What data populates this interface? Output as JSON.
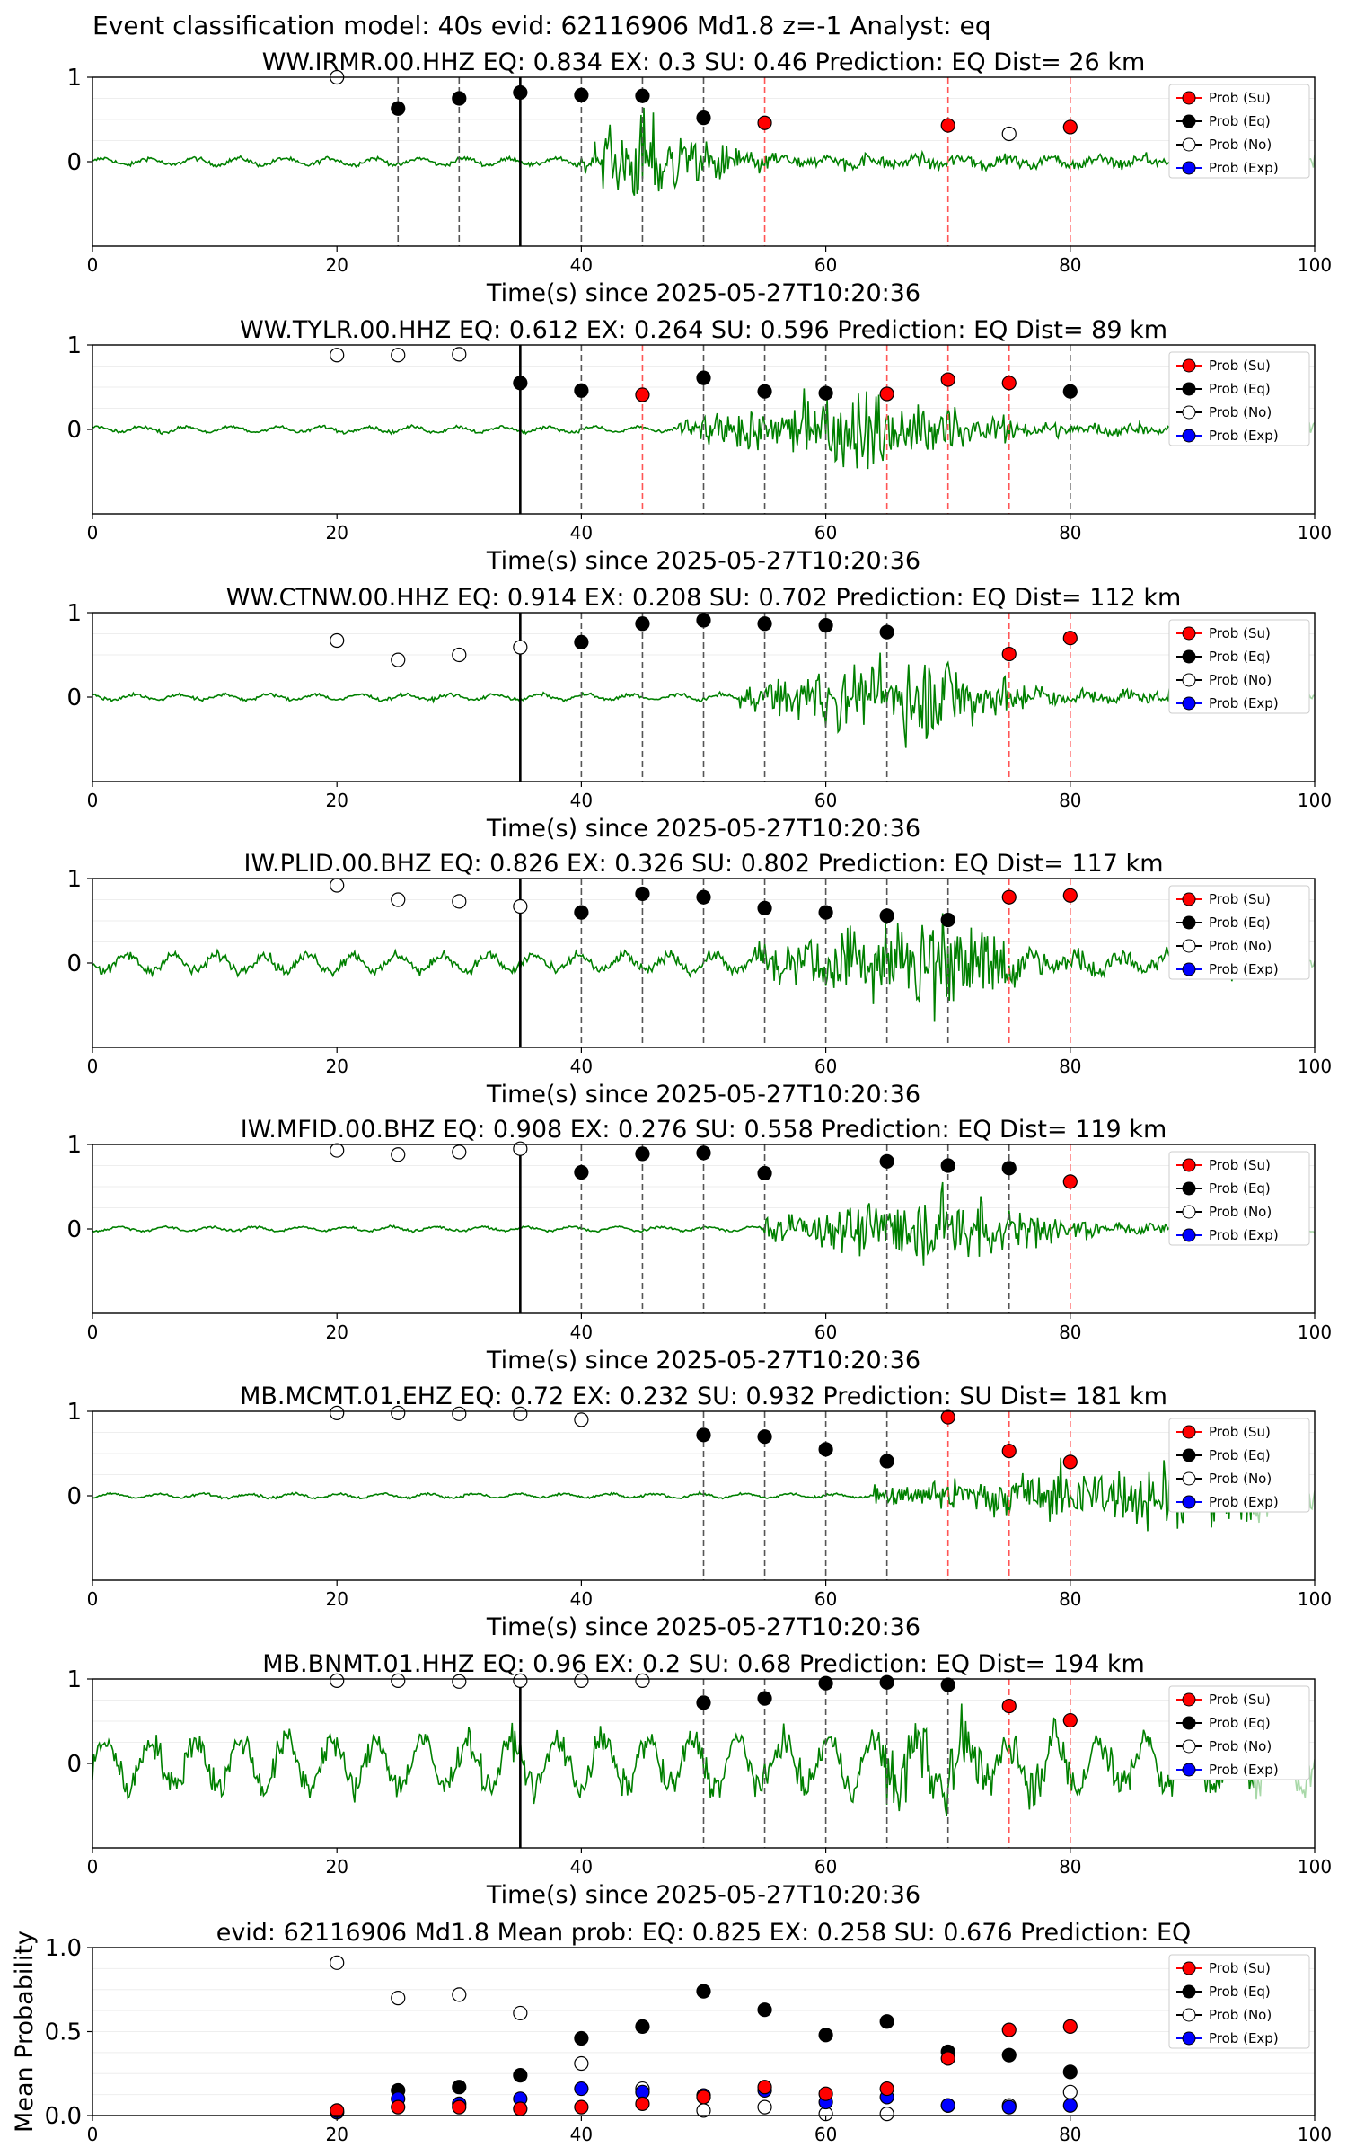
{
  "figure_title": "Event classification model: 40s evid: 62116906 Md1.8 z=-1 Analyst: eq",
  "legend_labels": [
    "Prob (Su)",
    "Prob (Eq)",
    "Prob (No)",
    "Prob (Exp)"
  ],
  "colors": {
    "su": "#ff0000",
    "eq": "#000000",
    "no": "#ffffff",
    "exp": "#0000ff",
    "waveform": "#008000",
    "waveform_future": "#a8d8a8",
    "pick_dashed": "#555555",
    "su_dashed": "#ff5555"
  },
  "chart_data": [
    {
      "type": "line",
      "title": "WW.IRMR.00.HHZ   EQ: 0.834  EX: 0.3  SU: 0.46   Prediction: EQ    Dist= 26 km",
      "xlabel": "Time(s) since 2025-05-27T10:20:36",
      "xlim": [
        0,
        100
      ],
      "ylim": [
        -1,
        1
      ],
      "xticks": [
        "0",
        "20",
        "40",
        "60",
        "80",
        "100"
      ],
      "yticks": [
        "1",
        "0"
      ],
      "legend": "top-right",
      "onset_time": 40,
      "peak_time": 45,
      "amp_noise": 0.05,
      "amp_signal": 0.9,
      "decay": 6,
      "ref_line": 35,
      "dashed_lines": [
        {
          "x": 25,
          "c": "k"
        },
        {
          "x": 30,
          "c": "k"
        },
        {
          "x": 40,
          "c": "k"
        },
        {
          "x": 45,
          "c": "k"
        },
        {
          "x": 50,
          "c": "k"
        },
        {
          "x": 55,
          "c": "r"
        },
        {
          "x": 70,
          "c": "r"
        },
        {
          "x": 80,
          "c": "r"
        }
      ],
      "points": [
        {
          "x": 20,
          "y": 1.0,
          "k": "no"
        },
        {
          "x": 25,
          "y": 0.63,
          "k": "eq"
        },
        {
          "x": 30,
          "y": 0.75,
          "k": "eq"
        },
        {
          "x": 35,
          "y": 0.82,
          "k": "eq"
        },
        {
          "x": 40,
          "y": 0.79,
          "k": "eq"
        },
        {
          "x": 45,
          "y": 0.78,
          "k": "eq"
        },
        {
          "x": 50,
          "y": 0.52,
          "k": "eq"
        },
        {
          "x": 55,
          "y": 0.46,
          "k": "su"
        },
        {
          "x": 70,
          "y": 0.43,
          "k": "su"
        },
        {
          "x": 75,
          "y": 0.33,
          "k": "no"
        },
        {
          "x": 80,
          "y": 0.41,
          "k": "su"
        }
      ]
    },
    {
      "type": "line",
      "title": "WW.TYLR.00.HHZ   EQ: 0.612  EX: 0.264  SU: 0.596   Prediction: EQ    Dist= 89 km",
      "xlabel": "Time(s) since 2025-05-27T10:20:36",
      "xlim": [
        0,
        100
      ],
      "ylim": [
        -1,
        1
      ],
      "xticks": [
        "0",
        "20",
        "40",
        "60",
        "80",
        "100"
      ],
      "yticks": [
        "1",
        "0"
      ],
      "legend": "top-right",
      "onset_time": 48,
      "peak_time": 65,
      "amp_noise": 0.04,
      "amp_signal": 0.8,
      "decay": 8,
      "ref_line": 35,
      "dashed_lines": [
        {
          "x": 40,
          "c": "k"
        },
        {
          "x": 45,
          "c": "r"
        },
        {
          "x": 50,
          "c": "k"
        },
        {
          "x": 55,
          "c": "k"
        },
        {
          "x": 60,
          "c": "k"
        },
        {
          "x": 65,
          "c": "r"
        },
        {
          "x": 70,
          "c": "r"
        },
        {
          "x": 75,
          "c": "r"
        },
        {
          "x": 80,
          "c": "k"
        }
      ],
      "points": [
        {
          "x": 20,
          "y": 0.88,
          "k": "no"
        },
        {
          "x": 25,
          "y": 0.88,
          "k": "no"
        },
        {
          "x": 30,
          "y": 0.89,
          "k": "no"
        },
        {
          "x": 35,
          "y": 0.55,
          "k": "eq"
        },
        {
          "x": 40,
          "y": 0.46,
          "k": "eq"
        },
        {
          "x": 45,
          "y": 0.41,
          "k": "su"
        },
        {
          "x": 50,
          "y": 0.61,
          "k": "eq"
        },
        {
          "x": 55,
          "y": 0.45,
          "k": "eq"
        },
        {
          "x": 60,
          "y": 0.43,
          "k": "eq"
        },
        {
          "x": 65,
          "y": 0.42,
          "k": "su"
        },
        {
          "x": 70,
          "y": 0.59,
          "k": "su"
        },
        {
          "x": 75,
          "y": 0.55,
          "k": "su"
        },
        {
          "x": 80,
          "y": 0.45,
          "k": "eq"
        }
      ]
    },
    {
      "type": "line",
      "title": "WW.CTNW.00.HHZ   EQ: 0.914  EX: 0.208  SU: 0.702   Prediction: EQ    Dist= 112 km",
      "xlabel": "Time(s) since 2025-05-27T10:20:36",
      "xlim": [
        0,
        100
      ],
      "ylim": [
        -1,
        1
      ],
      "xticks": [
        "0",
        "20",
        "40",
        "60",
        "80",
        "100"
      ],
      "yticks": [
        "1",
        "0"
      ],
      "legend": "top-right",
      "onset_time": 53,
      "peak_time": 69,
      "amp_noise": 0.04,
      "amp_signal": 0.85,
      "decay": 6,
      "ref_line": 35,
      "dashed_lines": [
        {
          "x": 40,
          "c": "k"
        },
        {
          "x": 45,
          "c": "k"
        },
        {
          "x": 50,
          "c": "k"
        },
        {
          "x": 55,
          "c": "k"
        },
        {
          "x": 60,
          "c": "k"
        },
        {
          "x": 65,
          "c": "k"
        },
        {
          "x": 75,
          "c": "r"
        },
        {
          "x": 80,
          "c": "r"
        }
      ],
      "points": [
        {
          "x": 20,
          "y": 0.67,
          "k": "no"
        },
        {
          "x": 25,
          "y": 0.44,
          "k": "no"
        },
        {
          "x": 30,
          "y": 0.5,
          "k": "no"
        },
        {
          "x": 35,
          "y": 0.59,
          "k": "no"
        },
        {
          "x": 40,
          "y": 0.65,
          "k": "eq"
        },
        {
          "x": 45,
          "y": 0.87,
          "k": "eq"
        },
        {
          "x": 50,
          "y": 0.91,
          "k": "eq"
        },
        {
          "x": 55,
          "y": 0.87,
          "k": "eq"
        },
        {
          "x": 60,
          "y": 0.85,
          "k": "eq"
        },
        {
          "x": 65,
          "y": 0.77,
          "k": "eq"
        },
        {
          "x": 75,
          "y": 0.51,
          "k": "su"
        },
        {
          "x": 80,
          "y": 0.7,
          "k": "su"
        }
      ]
    },
    {
      "type": "line",
      "title": "IW.PLID.00.BHZ   EQ: 0.826  EX: 0.326  SU: 0.802   Prediction: EQ    Dist= 117 km",
      "xlabel": "Time(s) since 2025-05-27T10:20:36",
      "xlim": [
        0,
        100
      ],
      "ylim": [
        -1,
        1
      ],
      "xticks": [
        "0",
        "20",
        "40",
        "60",
        "80",
        "100"
      ],
      "yticks": [
        "1",
        "0"
      ],
      "legend": "top-right",
      "onset_time": 54,
      "peak_time": 70,
      "amp_noise": 0.12,
      "amp_signal": 0.9,
      "decay": 7,
      "ref_line": 35,
      "dashed_lines": [
        {
          "x": 40,
          "c": "k"
        },
        {
          "x": 45,
          "c": "k"
        },
        {
          "x": 50,
          "c": "k"
        },
        {
          "x": 55,
          "c": "k"
        },
        {
          "x": 60,
          "c": "k"
        },
        {
          "x": 65,
          "c": "k"
        },
        {
          "x": 70,
          "c": "k"
        },
        {
          "x": 75,
          "c": "r"
        },
        {
          "x": 80,
          "c": "r"
        }
      ],
      "points": [
        {
          "x": 20,
          "y": 0.92,
          "k": "no"
        },
        {
          "x": 25,
          "y": 0.75,
          "k": "no"
        },
        {
          "x": 30,
          "y": 0.73,
          "k": "no"
        },
        {
          "x": 35,
          "y": 0.67,
          "k": "no"
        },
        {
          "x": 40,
          "y": 0.6,
          "k": "eq"
        },
        {
          "x": 45,
          "y": 0.82,
          "k": "eq"
        },
        {
          "x": 50,
          "y": 0.78,
          "k": "eq"
        },
        {
          "x": 55,
          "y": 0.65,
          "k": "eq"
        },
        {
          "x": 60,
          "y": 0.6,
          "k": "eq"
        },
        {
          "x": 65,
          "y": 0.56,
          "k": "eq"
        },
        {
          "x": 70,
          "y": 0.51,
          "k": "eq"
        },
        {
          "x": 75,
          "y": 0.78,
          "k": "su"
        },
        {
          "x": 80,
          "y": 0.8,
          "k": "su"
        }
      ]
    },
    {
      "type": "line",
      "title": "IW.MFID.00.BHZ   EQ: 0.908  EX: 0.276  SU: 0.558   Prediction: EQ    Dist= 119 km",
      "xlabel": "Time(s) since 2025-05-27T10:20:36",
      "xlim": [
        0,
        100
      ],
      "ylim": [
        -1,
        1
      ],
      "xticks": [
        "0",
        "20",
        "40",
        "60",
        "80",
        "100"
      ],
      "yticks": [
        "1",
        "0"
      ],
      "legend": "top-right",
      "onset_time": 55,
      "peak_time": 72,
      "amp_noise": 0.03,
      "amp_signal": 0.75,
      "decay": 6,
      "ref_line": 35,
      "dashed_lines": [
        {
          "x": 40,
          "c": "k"
        },
        {
          "x": 45,
          "c": "k"
        },
        {
          "x": 50,
          "c": "k"
        },
        {
          "x": 55,
          "c": "k"
        },
        {
          "x": 65,
          "c": "k"
        },
        {
          "x": 70,
          "c": "k"
        },
        {
          "x": 75,
          "c": "k"
        },
        {
          "x": 80,
          "c": "r"
        }
      ],
      "points": [
        {
          "x": 20,
          "y": 0.93,
          "k": "no"
        },
        {
          "x": 25,
          "y": 0.88,
          "k": "no"
        },
        {
          "x": 30,
          "y": 0.91,
          "k": "no"
        },
        {
          "x": 35,
          "y": 0.95,
          "k": "no"
        },
        {
          "x": 40,
          "y": 0.67,
          "k": "eq"
        },
        {
          "x": 45,
          "y": 0.89,
          "k": "eq"
        },
        {
          "x": 50,
          "y": 0.9,
          "k": "eq"
        },
        {
          "x": 55,
          "y": 0.66,
          "k": "eq"
        },
        {
          "x": 65,
          "y": 0.8,
          "k": "eq"
        },
        {
          "x": 70,
          "y": 0.75,
          "k": "eq"
        },
        {
          "x": 75,
          "y": 0.72,
          "k": "eq"
        },
        {
          "x": 80,
          "y": 0.56,
          "k": "su"
        }
      ]
    },
    {
      "type": "line",
      "title": "MB.MCMT.01.EHZ   EQ: 0.72  EX: 0.232  SU: 0.932   Prediction: SU    Dist= 181 km",
      "xlabel": "Time(s) since 2025-05-27T10:20:36",
      "xlim": [
        0,
        100
      ],
      "ylim": [
        -1,
        1
      ],
      "xticks": [
        "0",
        "20",
        "40",
        "60",
        "80",
        "100"
      ],
      "yticks": [
        "1",
        "0"
      ],
      "legend": "top-right",
      "onset_time": 64,
      "peak_time": 90,
      "amp_noise": 0.03,
      "amp_signal": 0.7,
      "decay": 20,
      "ref_line": null,
      "dashed_lines": [
        {
          "x": 50,
          "c": "k"
        },
        {
          "x": 55,
          "c": "k"
        },
        {
          "x": 60,
          "c": "k"
        },
        {
          "x": 65,
          "c": "k"
        },
        {
          "x": 70,
          "c": "r"
        },
        {
          "x": 75,
          "c": "r"
        },
        {
          "x": 80,
          "c": "r"
        }
      ],
      "points": [
        {
          "x": 20,
          "y": 0.98,
          "k": "no"
        },
        {
          "x": 25,
          "y": 0.98,
          "k": "no"
        },
        {
          "x": 30,
          "y": 0.97,
          "k": "no"
        },
        {
          "x": 35,
          "y": 0.97,
          "k": "no"
        },
        {
          "x": 40,
          "y": 0.9,
          "k": "no"
        },
        {
          "x": 50,
          "y": 0.72,
          "k": "eq"
        },
        {
          "x": 55,
          "y": 0.7,
          "k": "eq"
        },
        {
          "x": 60,
          "y": 0.55,
          "k": "eq"
        },
        {
          "x": 65,
          "y": 0.41,
          "k": "eq"
        },
        {
          "x": 70,
          "y": 0.93,
          "k": "su"
        },
        {
          "x": 75,
          "y": 0.53,
          "k": "su"
        },
        {
          "x": 80,
          "y": 0.4,
          "k": "su"
        }
      ]
    },
    {
      "type": "line",
      "title": "MB.BNMT.01.HHZ   EQ: 0.96  EX: 0.2  SU: 0.68   Prediction: EQ    Dist= 194 km",
      "xlabel": "Time(s) since 2025-05-27T10:20:36",
      "xlim": [
        0,
        100
      ],
      "ylim": [
        -1,
        1
      ],
      "xticks": [
        "0",
        "20",
        "40",
        "60",
        "80",
        "100"
      ],
      "yticks": [
        "1",
        "0"
      ],
      "legend": "top-right",
      "onset_time": 64,
      "peak_time": 66,
      "amp_noise": 0.35,
      "amp_signal": 0.7,
      "decay": 14,
      "ref_line": 35,
      "dashed_lines": [
        {
          "x": 50,
          "c": "k"
        },
        {
          "x": 55,
          "c": "k"
        },
        {
          "x": 60,
          "c": "k"
        },
        {
          "x": 65,
          "c": "k"
        },
        {
          "x": 70,
          "c": "k"
        },
        {
          "x": 75,
          "c": "r"
        },
        {
          "x": 80,
          "c": "r"
        }
      ],
      "points": [
        {
          "x": 20,
          "y": 0.98,
          "k": "no"
        },
        {
          "x": 25,
          "y": 0.98,
          "k": "no"
        },
        {
          "x": 30,
          "y": 0.97,
          "k": "no"
        },
        {
          "x": 35,
          "y": 0.98,
          "k": "no"
        },
        {
          "x": 40,
          "y": 0.98,
          "k": "no"
        },
        {
          "x": 45,
          "y": 0.98,
          "k": "no"
        },
        {
          "x": 50,
          "y": 0.72,
          "k": "eq"
        },
        {
          "x": 55,
          "y": 0.77,
          "k": "eq"
        },
        {
          "x": 60,
          "y": 0.95,
          "k": "eq"
        },
        {
          "x": 65,
          "y": 0.96,
          "k": "eq"
        },
        {
          "x": 70,
          "y": 0.93,
          "k": "eq"
        },
        {
          "x": 75,
          "y": 0.68,
          "k": "su"
        },
        {
          "x": 80,
          "y": 0.51,
          "k": "su"
        }
      ]
    },
    {
      "type": "scatter",
      "title": "evid: 62116906  Md1.8   Mean prob:   EQ: 0.825  EX: 0.258  SU: 0.676   Prediction: EQ",
      "ylabel": "Mean Probability",
      "xlim": [
        0,
        100
      ],
      "ylim": [
        0,
        1
      ],
      "xticks": [
        "0",
        "20",
        "40",
        "60",
        "80",
        "100"
      ],
      "yticks": [
        "1.0",
        "0.5",
        "0.0"
      ],
      "legend": "top-right",
      "x": [
        20,
        25,
        30,
        35,
        40,
        45,
        50,
        55,
        60,
        65,
        70,
        75,
        80
      ],
      "series": [
        {
          "name": "Prob (No)",
          "k": "no",
          "values": [
            0.91,
            0.7,
            0.72,
            0.61,
            0.31,
            0.16,
            0.03,
            0.05,
            0.01,
            0.01,
            0.06,
            0.06,
            0.14
          ]
        },
        {
          "name": "Prob (Eq)",
          "k": "eq",
          "values": [
            0.02,
            0.15,
            0.17,
            0.24,
            0.46,
            0.53,
            0.74,
            0.63,
            0.48,
            0.56,
            0.38,
            0.36,
            0.26
          ]
        },
        {
          "name": "Prob (Exp)",
          "k": "exp",
          "values": [
            0.02,
            0.1,
            0.07,
            0.1,
            0.16,
            0.14,
            0.12,
            0.15,
            0.08,
            0.11,
            0.06,
            0.05,
            0.06
          ]
        },
        {
          "name": "Prob (Su)",
          "k": "su",
          "values": [
            0.03,
            0.05,
            0.05,
            0.04,
            0.05,
            0.07,
            0.11,
            0.17,
            0.13,
            0.16,
            0.34,
            0.51,
            0.53
          ]
        }
      ]
    }
  ]
}
